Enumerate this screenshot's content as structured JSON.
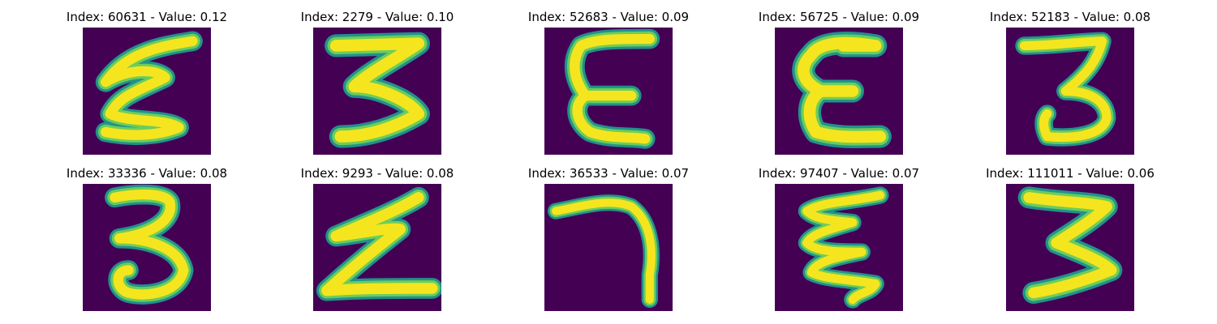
{
  "figure": {
    "panels": [
      {
        "title": "Index: 60631 - Value: 0.12",
        "index": 60631,
        "value": 0.12,
        "digit_shape": "zigzag-e"
      },
      {
        "title": "Index: 2279 - Value: 0.10",
        "index": 2279,
        "value": 0.1,
        "digit_shape": "three-flat-top"
      },
      {
        "title": "Index: 52683 - Value: 0.09",
        "index": 52683,
        "value": 0.09,
        "digit_shape": "epsilon"
      },
      {
        "title": "Index: 56725 - Value: 0.09",
        "index": 56725,
        "value": 0.09,
        "digit_shape": "epsilon-thick"
      },
      {
        "title": "Index: 52183 - Value: 0.08",
        "index": 52183,
        "value": 0.08,
        "digit_shape": "three"
      },
      {
        "title": "Index: 33336 - Value: 0.08",
        "index": 33336,
        "value": 0.08,
        "digit_shape": "three-round"
      },
      {
        "title": "Index: 9293 - Value: 0.08",
        "index": 9293,
        "value": 0.08,
        "digit_shape": "zigzag-z"
      },
      {
        "title": "Index: 36533 - Value: 0.07",
        "index": 36533,
        "value": 0.07,
        "digit_shape": "seven-hook"
      },
      {
        "title": "Index: 97407 - Value: 0.07",
        "index": 97407,
        "value": 0.07,
        "digit_shape": "zigzag-e"
      },
      {
        "title": "Index: 111011 - Value: 0.06",
        "index": 111011,
        "value": 0.06,
        "digit_shape": "three-flat-top"
      }
    ],
    "colors": {
      "background": "#440154",
      "stroke_core": "#f5e51f",
      "stroke_mid": "#6ccd5a",
      "stroke_edge": "#21918c",
      "title_text": "#000000"
    }
  }
}
